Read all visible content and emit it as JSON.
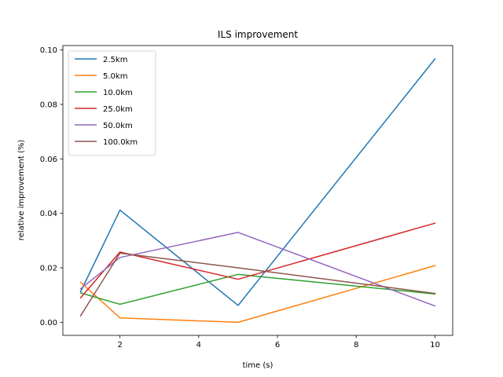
{
  "chart_data": {
    "type": "line",
    "title": "ILS improvement",
    "xlabel": "time (s)",
    "ylabel": "relative improvement (%)",
    "x": [
      1,
      2,
      5,
      10
    ],
    "xlim": [
      0.55,
      10.45
    ],
    "ylim": [
      -0.0048,
      0.1016
    ],
    "xticks": [
      2,
      4,
      6,
      8,
      10
    ],
    "xtick_labels": [
      "2",
      "4",
      "6",
      "8",
      "10"
    ],
    "yticks": [
      0.0,
      0.02,
      0.04,
      0.06,
      0.08,
      0.1
    ],
    "ytick_labels": [
      "0.00",
      "0.02",
      "0.04",
      "0.06",
      "0.08",
      "0.10"
    ],
    "grid": false,
    "legend_position": "top-left",
    "series": [
      {
        "name": "2.5km",
        "color": "#1f77b4",
        "values": [
          0.0112,
          0.0412,
          0.0062,
          0.0967
        ]
      },
      {
        "name": "5.0km",
        "color": "#ff7f0e",
        "values": [
          0.0147,
          0.0016,
          0.0,
          0.0208
        ]
      },
      {
        "name": "10.0km",
        "color": "#2ca02c",
        "values": [
          0.0108,
          0.0066,
          0.0176,
          0.0104
        ]
      },
      {
        "name": "25.0km",
        "color": "#d62728",
        "values": [
          0.009,
          0.0258,
          0.0158,
          0.0364
        ]
      },
      {
        "name": "50.0km",
        "color": "#9467bd",
        "values": [
          0.0123,
          0.0238,
          0.033,
          0.006
        ]
      },
      {
        "name": "100.0km",
        "color": "#8c564b",
        "values": [
          0.0024,
          0.0254,
          0.02,
          0.0106
        ]
      }
    ]
  }
}
